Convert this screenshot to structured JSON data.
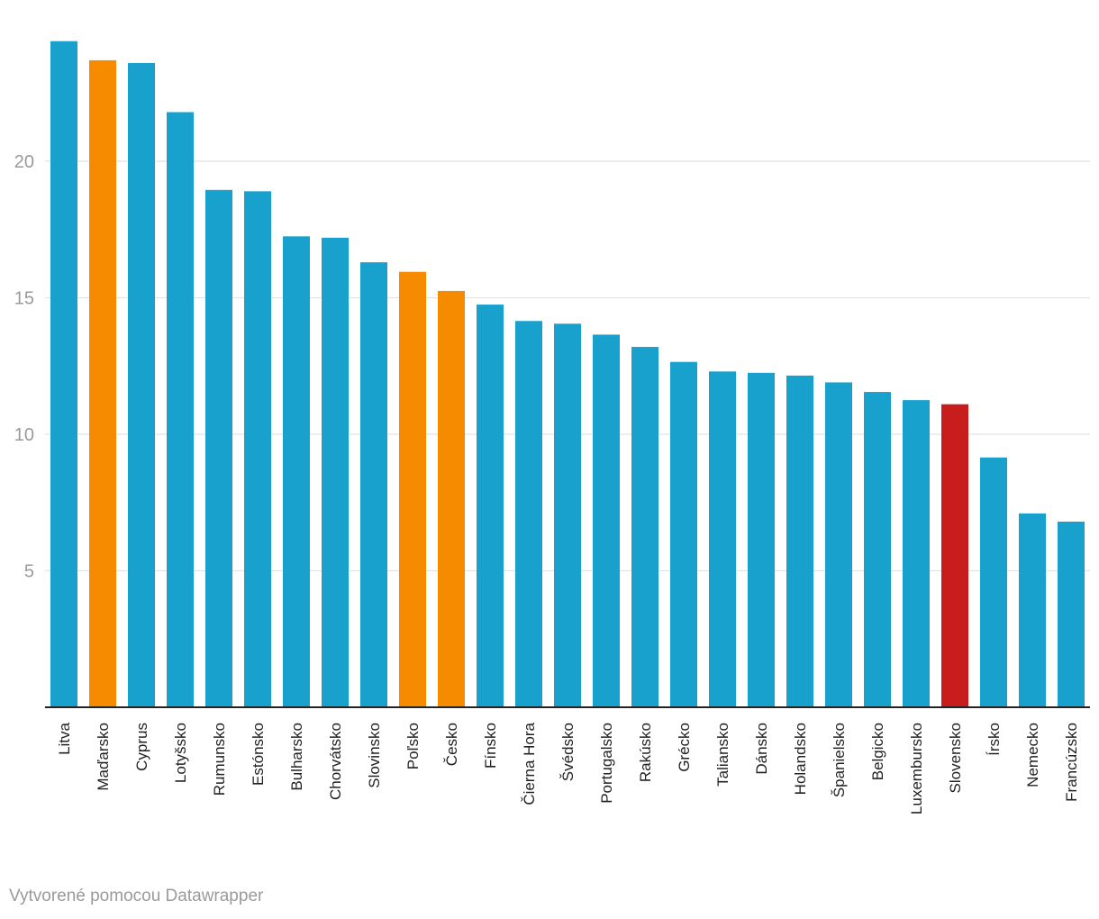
{
  "chart_data": {
    "type": "bar",
    "title": "",
    "xlabel": "",
    "ylabel": "",
    "ylim": [
      0,
      24.5
    ],
    "yticks": [
      5,
      10,
      15,
      20
    ],
    "grid": true,
    "categories": [
      "Litva",
      "Maďarsko",
      "Cyprus",
      "Lotyšsko",
      "Rumunsko",
      "Estónsko",
      "Bulharsko",
      "Chorvátsko",
      "Slovinsko",
      "Poľsko",
      "Česko",
      "Fínsko",
      "Čierna Hora",
      "Švédsko",
      "Portugalsko",
      "Rakúsko",
      "Grécko",
      "Taliansko",
      "Dánsko",
      "Holandsko",
      "Španielsko",
      "Belgicko",
      "Luxembursko",
      "Slovensko",
      "Írsko",
      "Nemecko",
      "Francúzsko"
    ],
    "values": [
      24.4,
      23.7,
      23.6,
      21.8,
      18.95,
      18.9,
      17.25,
      17.2,
      16.3,
      15.95,
      15.25,
      14.75,
      14.15,
      14.05,
      13.65,
      13.2,
      12.65,
      12.3,
      12.25,
      12.15,
      11.9,
      11.55,
      11.25,
      11.1,
      9.15,
      7.1,
      6.8
    ],
    "colors": [
      "#18a1cd",
      "#f78b00",
      "#18a1cd",
      "#18a1cd",
      "#18a1cd",
      "#18a1cd",
      "#18a1cd",
      "#18a1cd",
      "#18a1cd",
      "#f78b00",
      "#f78b00",
      "#18a1cd",
      "#18a1cd",
      "#18a1cd",
      "#18a1cd",
      "#18a1cd",
      "#18a1cd",
      "#18a1cd",
      "#18a1cd",
      "#18a1cd",
      "#18a1cd",
      "#18a1cd",
      "#18a1cd",
      "#c71e1d",
      "#18a1cd",
      "#18a1cd",
      "#18a1cd"
    ]
  },
  "credit": "Vytvorené pomocou Datawrapper"
}
